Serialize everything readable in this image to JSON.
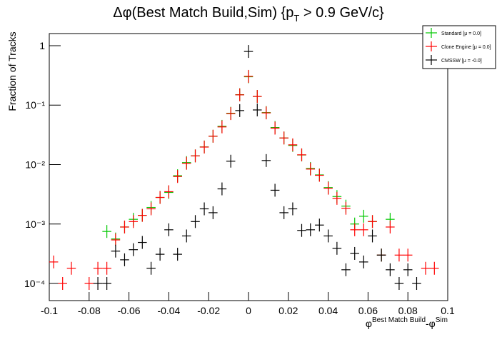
{
  "chart_data": {
    "type": "errorbar",
    "title": [
      "Δφ(Best Match Build,Sim) {p",
      "T",
      " > 0.9 GeV/c}"
    ],
    "x_label": [
      "φ",
      "Best Match Build",
      "-φ",
      "Sim"
    ],
    "y_label": "Fraction of Tracks",
    "x": [
      -0.0978,
      -0.0933,
      -0.0889,
      -0.0844,
      -0.08,
      -0.0756,
      -0.0711,
      -0.0667,
      -0.0622,
      -0.0578,
      -0.0533,
      -0.0489,
      -0.0444,
      -0.04,
      -0.0356,
      -0.0311,
      -0.0267,
      -0.0222,
      -0.0178,
      -0.0133,
      -0.0089,
      -0.0044,
      0,
      0.0044,
      0.0089,
      0.0133,
      0.0178,
      0.0222,
      0.0267,
      0.0311,
      0.0356,
      0.04,
      0.0444,
      0.0489,
      0.0533,
      0.0578,
      0.0622,
      0.0667,
      0.0711,
      0.0756,
      0.08,
      0.0844,
      0.0889,
      0.0933,
      0.0978
    ],
    "series": [
      {
        "name": "Standard  [μ = 0.0]",
        "color": "#00c800",
        "values": [
          null,
          null,
          null,
          null,
          null,
          null,
          0.00075,
          0.00056,
          0.00089,
          0.0012,
          0.0014,
          0.0019,
          0.0028,
          0.0034,
          0.0065,
          0.0108,
          0.014,
          0.0198,
          0.03,
          0.044,
          0.073,
          0.15,
          0.3,
          0.14,
          0.075,
          0.042,
          0.028,
          0.021,
          0.0145,
          0.0086,
          0.0067,
          0.0041,
          0.0029,
          0.002,
          0.001,
          0.00135,
          0.0011,
          0.0003,
          0.0012,
          null,
          null,
          null,
          null,
          null,
          null
        ]
      },
      {
        "name": "Clone Engine  [μ = 0.0]",
        "color": "#ff0000",
        "values": [
          0.00023,
          0.0001,
          0.00018,
          null,
          0.0001,
          0.00018,
          0.00018,
          0.00054,
          0.00089,
          0.0011,
          0.0014,
          0.0018,
          0.0028,
          0.0035,
          0.0063,
          0.0105,
          0.014,
          0.0197,
          0.03,
          0.043,
          0.072,
          0.149,
          0.305,
          0.14,
          0.074,
          0.041,
          0.028,
          0.0215,
          0.0146,
          0.0084,
          0.0066,
          0.004,
          0.0027,
          0.00184,
          0.0008,
          0.0008,
          0.0011,
          0.0003,
          0.00089,
          0.0003,
          0.0003,
          null,
          0.00018,
          0.00018,
          null
        ]
      },
      {
        "name": "CMSSW  [μ = -0.0]",
        "color": "#000000",
        "values": [
          null,
          null,
          null,
          null,
          null,
          0.0001,
          0.0001,
          0.00035,
          0.00025,
          0.00037,
          0.00049,
          0.00018,
          0.00031,
          0.0008,
          0.00031,
          0.00063,
          0.0011,
          0.0018,
          0.00155,
          0.0039,
          0.0114,
          0.081,
          0.8,
          0.083,
          0.0117,
          0.0037,
          0.00155,
          0.0018,
          0.00078,
          0.0008,
          0.00096,
          0.00063,
          0.00039,
          0.00017,
          0.00032,
          0.00023,
          0.00063,
          0.0003,
          0.00017,
          0.0001,
          0.00017,
          0.0001,
          null,
          null,
          null
        ]
      }
    ],
    "xlim": [
      -0.1,
      0.1
    ],
    "xticks": [
      -0.1,
      -0.08,
      -0.06,
      -0.04,
      -0.02,
      0,
      0.02,
      0.04,
      0.06,
      0.08,
      0.1
    ],
    "ylim": [
      5.15e-05,
      1.6
    ],
    "yticks": [
      {
        "value": 0.0001,
        "label": "10⁻⁴"
      },
      {
        "value": 0.001,
        "label": "10⁻³"
      },
      {
        "value": 0.01,
        "label": "10⁻²"
      },
      {
        "value": 0.1,
        "label": "10⁻¹"
      },
      1
    ],
    "log_y": true,
    "legend": "top-right"
  }
}
